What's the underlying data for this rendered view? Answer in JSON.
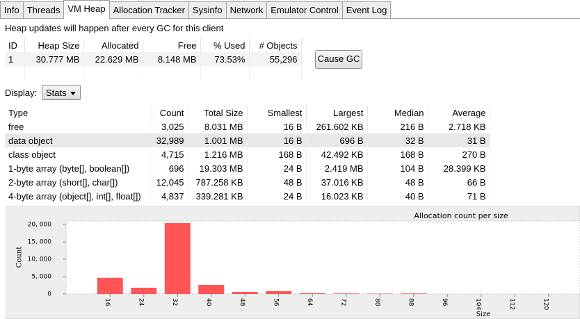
{
  "tabs": [
    "Info",
    "Threads",
    "VM Heap",
    "Allocation Tracker",
    "Sysinfo",
    "Network",
    "Emulator Control",
    "Event Log"
  ],
  "message": "Heap updates will happen after every GC for this client",
  "heap_table": {
    "headers": [
      "ID",
      "Heap Size",
      "Allocated",
      "Free",
      "% Used",
      "# Objects"
    ],
    "rows": [
      [
        "1",
        "30.777 MB",
        "22.629 MB",
        "8.148 MB",
        "73.53%",
        "55,296"
      ]
    ]
  },
  "cause_gc_button": "Cause GC",
  "display_label": "Display:",
  "display_select": "Stats",
  "stats_table": {
    "headers": [
      "Type",
      "Count",
      "Total Size",
      "Smallest",
      "Largest",
      "Median",
      "Average"
    ],
    "rows": [
      [
        "free",
        "3,025",
        "8.031 MB",
        "16 B",
        "261.602 KB",
        "216 B",
        "2.718 KB"
      ],
      [
        "data object",
        "32,989",
        "1.001 MB",
        "16 B",
        "696 B",
        "32 B",
        "31 B"
      ],
      [
        "class object",
        "4,715",
        "1.216 MB",
        "168 B",
        "42.492 KB",
        "168 B",
        "270 B"
      ],
      [
        "1-byte array (byte[], boolean[])",
        "696",
        "19.303 MB",
        "24 B",
        "2.419 MB",
        "104 B",
        "28.399 KB"
      ],
      [
        "2-byte array (short[], char[])",
        "12,045",
        "787.258 KB",
        "48 B",
        "37.016 KB",
        "48 B",
        "66 B"
      ],
      [
        "4-byte array (object[], int[], float[])",
        "4,837",
        "339.281 KB",
        "24 B",
        "16.023 KB",
        "40 B",
        "71 B"
      ]
    ]
  },
  "chart_data": {
    "type": "bar",
    "title": "Allocation count per size",
    "xlabel": "Size",
    "ylabel": "Count",
    "categories": [
      "16",
      "24",
      "32",
      "40",
      "48",
      "56",
      "64",
      "72",
      "80",
      "88",
      "96",
      "104",
      "112",
      "120"
    ],
    "values": [
      4650,
      1800,
      20400,
      2600,
      600,
      800,
      200,
      150,
      100,
      150,
      0,
      0,
      0,
      0
    ],
    "color": "#ff5555",
    "ylim": [
      0,
      21000
    ],
    "yticks": [
      0,
      {
        "value": 5000,
        "label": "5, 000"
      },
      {
        "value": 10000,
        "label": "10, 000"
      },
      {
        "value": 15000,
        "label": "15, 000"
      },
      {
        "value": 20000,
        "label": "20, 000"
      }
    ]
  }
}
